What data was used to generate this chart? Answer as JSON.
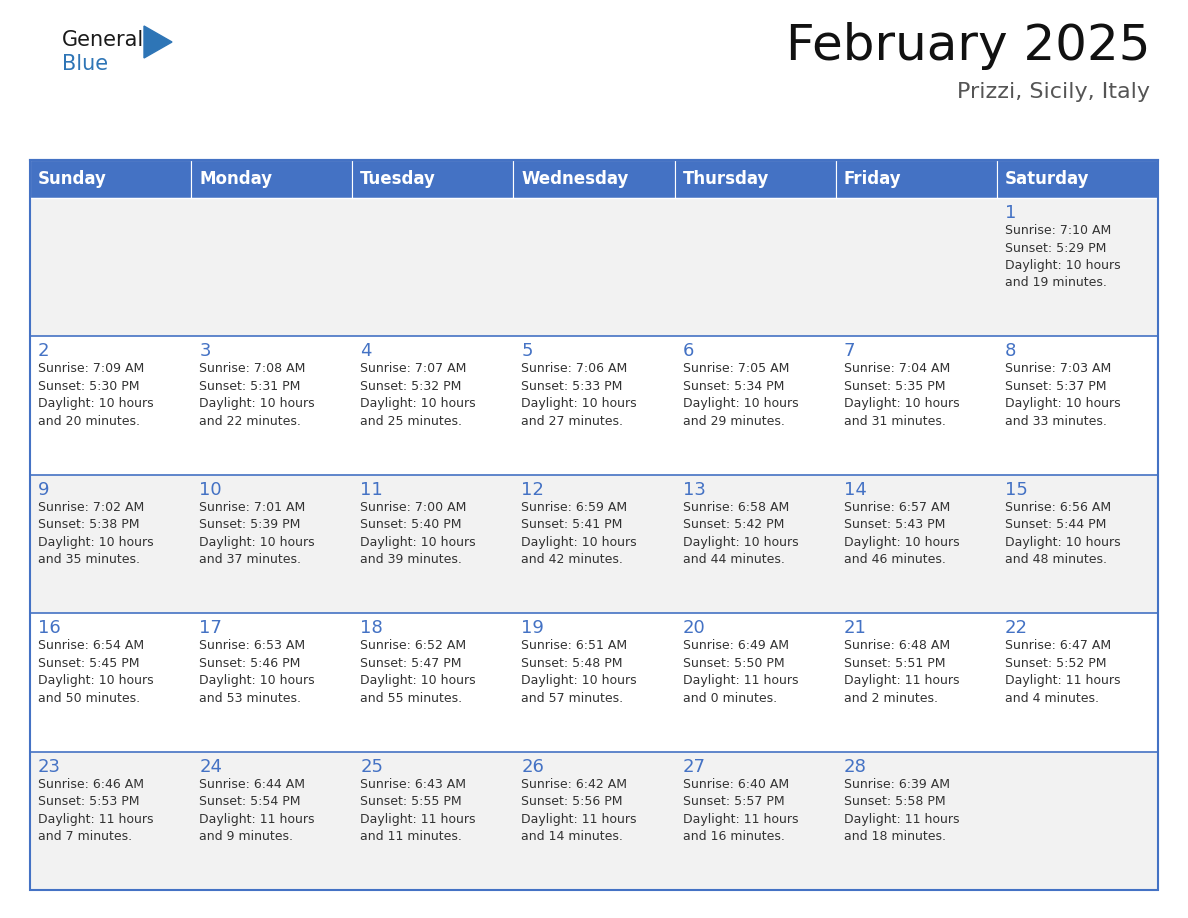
{
  "title": "February 2025",
  "subtitle": "Prizzi, Sicily, Italy",
  "days_of_week": [
    "Sunday",
    "Monday",
    "Tuesday",
    "Wednesday",
    "Thursday",
    "Friday",
    "Saturday"
  ],
  "header_bg": "#4472C4",
  "header_fg": "#FFFFFF",
  "cell_bg_odd": "#F2F2F2",
  "cell_bg_even": "#FFFFFF",
  "cell_border": "#4472C4",
  "cell_divider": "#AAAAAA",
  "day_num_color": "#4472C4",
  "text_color": "#333333",
  "logo_general_color": "#1a1a1a",
  "logo_blue_color": "#2E75B6",
  "title_fontsize": 36,
  "subtitle_fontsize": 16,
  "header_fontsize": 12,
  "day_num_fontsize": 13,
  "cell_text_fontsize": 9,
  "calendar": [
    [
      null,
      null,
      null,
      null,
      null,
      null,
      {
        "day": 1,
        "sunrise": "7:10 AM",
        "sunset": "5:29 PM",
        "daylight": "10 hours\nand 19 minutes."
      }
    ],
    [
      {
        "day": 2,
        "sunrise": "7:09 AM",
        "sunset": "5:30 PM",
        "daylight": "10 hours\nand 20 minutes."
      },
      {
        "day": 3,
        "sunrise": "7:08 AM",
        "sunset": "5:31 PM",
        "daylight": "10 hours\nand 22 minutes."
      },
      {
        "day": 4,
        "sunrise": "7:07 AM",
        "sunset": "5:32 PM",
        "daylight": "10 hours\nand 25 minutes."
      },
      {
        "day": 5,
        "sunrise": "7:06 AM",
        "sunset": "5:33 PM",
        "daylight": "10 hours\nand 27 minutes."
      },
      {
        "day": 6,
        "sunrise": "7:05 AM",
        "sunset": "5:34 PM",
        "daylight": "10 hours\nand 29 minutes."
      },
      {
        "day": 7,
        "sunrise": "7:04 AM",
        "sunset": "5:35 PM",
        "daylight": "10 hours\nand 31 minutes."
      },
      {
        "day": 8,
        "sunrise": "7:03 AM",
        "sunset": "5:37 PM",
        "daylight": "10 hours\nand 33 minutes."
      }
    ],
    [
      {
        "day": 9,
        "sunrise": "7:02 AM",
        "sunset": "5:38 PM",
        "daylight": "10 hours\nand 35 minutes."
      },
      {
        "day": 10,
        "sunrise": "7:01 AM",
        "sunset": "5:39 PM",
        "daylight": "10 hours\nand 37 minutes."
      },
      {
        "day": 11,
        "sunrise": "7:00 AM",
        "sunset": "5:40 PM",
        "daylight": "10 hours\nand 39 minutes."
      },
      {
        "day": 12,
        "sunrise": "6:59 AM",
        "sunset": "5:41 PM",
        "daylight": "10 hours\nand 42 minutes."
      },
      {
        "day": 13,
        "sunrise": "6:58 AM",
        "sunset": "5:42 PM",
        "daylight": "10 hours\nand 44 minutes."
      },
      {
        "day": 14,
        "sunrise": "6:57 AM",
        "sunset": "5:43 PM",
        "daylight": "10 hours\nand 46 minutes."
      },
      {
        "day": 15,
        "sunrise": "6:56 AM",
        "sunset": "5:44 PM",
        "daylight": "10 hours\nand 48 minutes."
      }
    ],
    [
      {
        "day": 16,
        "sunrise": "6:54 AM",
        "sunset": "5:45 PM",
        "daylight": "10 hours\nand 50 minutes."
      },
      {
        "day": 17,
        "sunrise": "6:53 AM",
        "sunset": "5:46 PM",
        "daylight": "10 hours\nand 53 minutes."
      },
      {
        "day": 18,
        "sunrise": "6:52 AM",
        "sunset": "5:47 PM",
        "daylight": "10 hours\nand 55 minutes."
      },
      {
        "day": 19,
        "sunrise": "6:51 AM",
        "sunset": "5:48 PM",
        "daylight": "10 hours\nand 57 minutes."
      },
      {
        "day": 20,
        "sunrise": "6:49 AM",
        "sunset": "5:50 PM",
        "daylight": "11 hours\nand 0 minutes."
      },
      {
        "day": 21,
        "sunrise": "6:48 AM",
        "sunset": "5:51 PM",
        "daylight": "11 hours\nand 2 minutes."
      },
      {
        "day": 22,
        "sunrise": "6:47 AM",
        "sunset": "5:52 PM",
        "daylight": "11 hours\nand 4 minutes."
      }
    ],
    [
      {
        "day": 23,
        "sunrise": "6:46 AM",
        "sunset": "5:53 PM",
        "daylight": "11 hours\nand 7 minutes."
      },
      {
        "day": 24,
        "sunrise": "6:44 AM",
        "sunset": "5:54 PM",
        "daylight": "11 hours\nand 9 minutes."
      },
      {
        "day": 25,
        "sunrise": "6:43 AM",
        "sunset": "5:55 PM",
        "daylight": "11 hours\nand 11 minutes."
      },
      {
        "day": 26,
        "sunrise": "6:42 AM",
        "sunset": "5:56 PM",
        "daylight": "11 hours\nand 14 minutes."
      },
      {
        "day": 27,
        "sunrise": "6:40 AM",
        "sunset": "5:57 PM",
        "daylight": "11 hours\nand 16 minutes."
      },
      {
        "day": 28,
        "sunrise": "6:39 AM",
        "sunset": "5:58 PM",
        "daylight": "11 hours\nand 18 minutes."
      },
      null
    ]
  ]
}
